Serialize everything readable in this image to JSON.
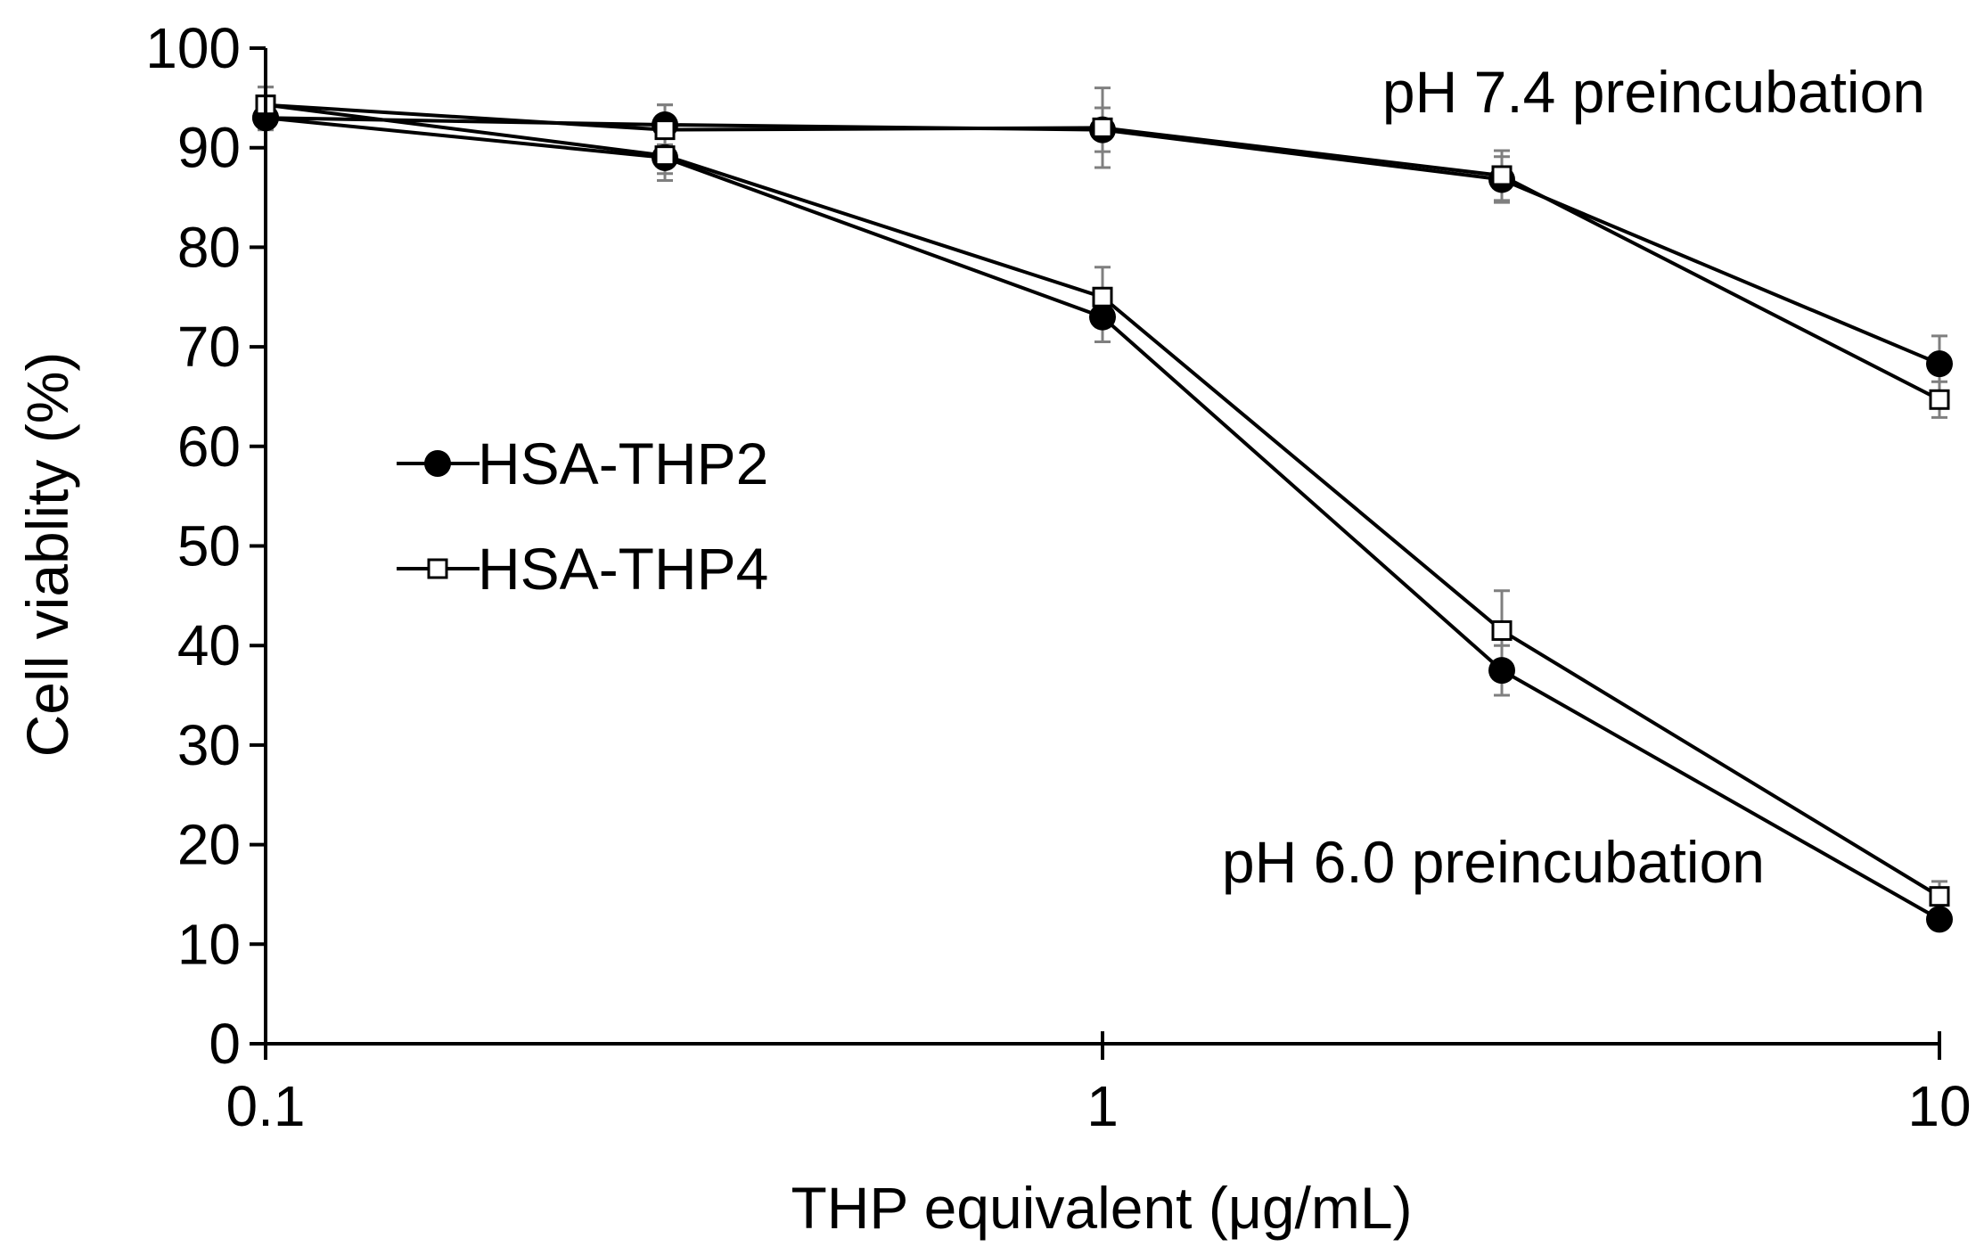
{
  "chart_data": {
    "type": "line",
    "xlabel": "THP equivalent (μg/mL)",
    "ylabel": "Cell viablity (%)",
    "x_scale": "log",
    "xlim": [
      0.1,
      10
    ],
    "ylim": [
      0,
      100
    ],
    "x_ticks": [
      {
        "value": 0.1,
        "label": "0.1"
      },
      {
        "value": 1,
        "label": "1"
      },
      {
        "value": 10,
        "label": "10"
      }
    ],
    "y_ticks": [
      {
        "value": 0,
        "label": "0"
      },
      {
        "value": 10,
        "label": "10"
      },
      {
        "value": 20,
        "label": "20"
      },
      {
        "value": 30,
        "label": "30"
      },
      {
        "value": 40,
        "label": "40"
      },
      {
        "value": 50,
        "label": "50"
      },
      {
        "value": 60,
        "label": "60"
      },
      {
        "value": 70,
        "label": "70"
      },
      {
        "value": 80,
        "label": "80"
      },
      {
        "value": 90,
        "label": "90"
      },
      {
        "value": 100,
        "label": "100"
      }
    ],
    "grid": false,
    "legend": {
      "position": "middle-left",
      "entries": [
        {
          "label": "HSA-THP2",
          "marker": "filled-circle"
        },
        {
          "label": "HSA-THP4",
          "marker": "open-square"
        }
      ]
    },
    "annotations": [
      {
        "text": "pH 7.4 preincubation",
        "x": 3.6,
        "y": 93
      },
      {
        "text": "pH 6.0 preincubation",
        "x": 2.6,
        "y": 16.5
      }
    ],
    "series": [
      {
        "marker": "filled-circle",
        "condition_label": "pH 7.4 preincubation",
        "x": [
          0.1,
          0.3,
          1,
          3,
          10
        ],
        "y": [
          93,
          92.3,
          91.8,
          86.8,
          68.3
        ],
        "err": [
          1.2,
          2.0,
          2.2,
          2.3,
          2.8
        ]
      },
      {
        "marker": "open-square",
        "condition_label": "pH 7.4 preincubation",
        "x": [
          0.1,
          0.3,
          1,
          3,
          10
        ],
        "y": [
          94.3,
          91.8,
          92,
          87.2,
          64.7
        ],
        "err": [
          1.8,
          2.5,
          4.0,
          2.5,
          1.8
        ]
      },
      {
        "marker": "filled-circle",
        "condition_label": "pH 6.0 preincubation",
        "x": [
          0.1,
          0.3,
          1,
          3,
          10
        ],
        "y": [
          93,
          89,
          73,
          37.5,
          12.5
        ],
        "err": [
          1.2,
          2.3,
          2.5,
          2.5,
          0.8
        ]
      },
      {
        "marker": "open-square",
        "condition_label": "pH 6.0 preincubation",
        "x": [
          0.1,
          0.3,
          1,
          3,
          10
        ],
        "y": [
          94.3,
          89.2,
          75,
          41.5,
          14.8
        ],
        "err": [
          1.8,
          1.8,
          3.0,
          4.0,
          1.5
        ]
      }
    ],
    "colors": {
      "line": "#000000",
      "marker_fill": "#000000",
      "error_bar": "#7f7f7f"
    }
  }
}
